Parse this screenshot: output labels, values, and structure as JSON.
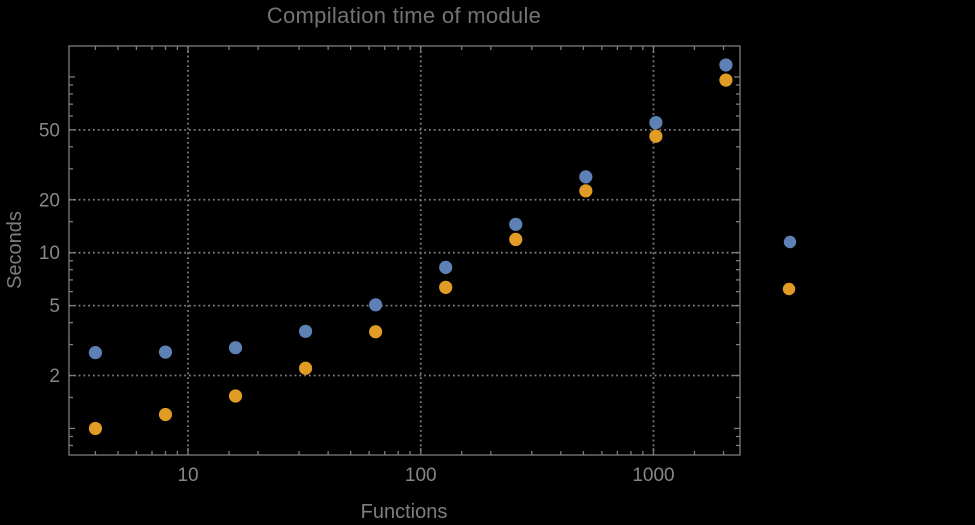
{
  "title": "Compilation time of module",
  "axes": {
    "xlabel": "Functions",
    "ylabel": "Seconds",
    "x_tick_labels": [
      "10",
      "100",
      "1000"
    ],
    "y_tick_labels": [
      "2",
      "5",
      "10",
      "20",
      "50"
    ]
  },
  "colors": {
    "background": "#000000",
    "frame": "#7d7d7d",
    "grid": "#7d7d7d",
    "text": "#878787",
    "series1": "#5e81b5",
    "series2": "#e09c24"
  },
  "legend": {
    "markers": [
      {
        "series": "series-1",
        "color": "#5e81b5",
        "label": ""
      },
      {
        "series": "series-2",
        "color": "#e09c24",
        "label": ""
      }
    ]
  },
  "chart_data": {
    "type": "scatter",
    "title": "Compilation time of module",
    "xlabel": "Functions",
    "ylabel": "Seconds",
    "xscale": "log",
    "yscale": "log",
    "xlim": [
      3.08,
      2354
    ],
    "ylim": [
      0.706,
      150
    ],
    "grid": {
      "style": "dotted",
      "at": "labeled major ticks only"
    },
    "legend_position": "right-outside",
    "x_major_ticks": [
      10,
      100,
      1000
    ],
    "y_major_ticks": [
      2,
      5,
      10,
      20,
      50
    ],
    "y_unlabeled_major_ticks": [
      1,
      100
    ],
    "minor_tick_mantissas": [
      1.5,
      2,
      3,
      4,
      5,
      6,
      7,
      8,
      9
    ],
    "x": [
      4,
      8,
      16,
      32,
      64,
      128,
      256,
      512,
      1024,
      2048
    ],
    "series": [
      {
        "name": "series-1",
        "color": "#5e81b5",
        "marker": "circle",
        "values": [
          2.7,
          2.72,
          2.88,
          3.57,
          5.05,
          8.25,
          14.5,
          27,
          55,
          117
        ]
      },
      {
        "name": "series-2",
        "color": "#e09c24",
        "marker": "circle",
        "values": [
          1.0,
          1.2,
          1.53,
          2.2,
          3.55,
          6.35,
          11.9,
          22.5,
          46,
          96
        ]
      }
    ]
  }
}
